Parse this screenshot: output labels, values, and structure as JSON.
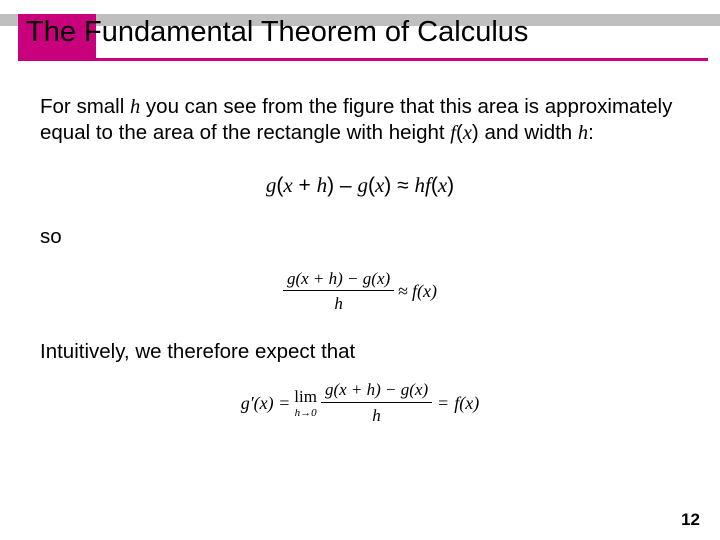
{
  "accent_color": "#c9007b",
  "graybar_color": "#bfbfbf",
  "background_color": "#ffffff",
  "title": "The Fundamental Theorem of Calculus",
  "body": {
    "p1_a": "For small ",
    "p1_h": "h",
    "p1_b": " you can see from the figure that this area is approximately equal to the area of the rectangle with height ",
    "p1_fx": "f",
    "p1_paren_open": "(",
    "p1_x": "x",
    "p1_paren_close": ")",
    "p1_c": " and width ",
    "p1_h2": "h",
    "p1_colon": ":"
  },
  "eq1": {
    "g1": "g",
    "open1": "(",
    "x1": "x",
    "plus": " + ",
    "h1": "h",
    "close1": ")",
    "minus": " – ",
    "g2": "g",
    "open2": "(",
    "x2": "x",
    "close2": ")",
    "approx": " ≈ ",
    "hf_h": "h",
    "hf_f": "f",
    "open3": "(",
    "x3": "x",
    "close3": ")"
  },
  "so": "so",
  "eq2": {
    "num": "g(x + h)  −  g(x)",
    "den": "h",
    "approx": "≈",
    "rhs": "f(x)"
  },
  "p2": "Intuitively, we therefore expect that",
  "eq3": {
    "lhs": "g′(x) =",
    "lim_top": "lim",
    "lim_bot": "h→0",
    "num": "g(x + h)  −  g(x)",
    "den": "h",
    "eq": "=",
    "rhs": "f(x)"
  },
  "page_number": "12"
}
